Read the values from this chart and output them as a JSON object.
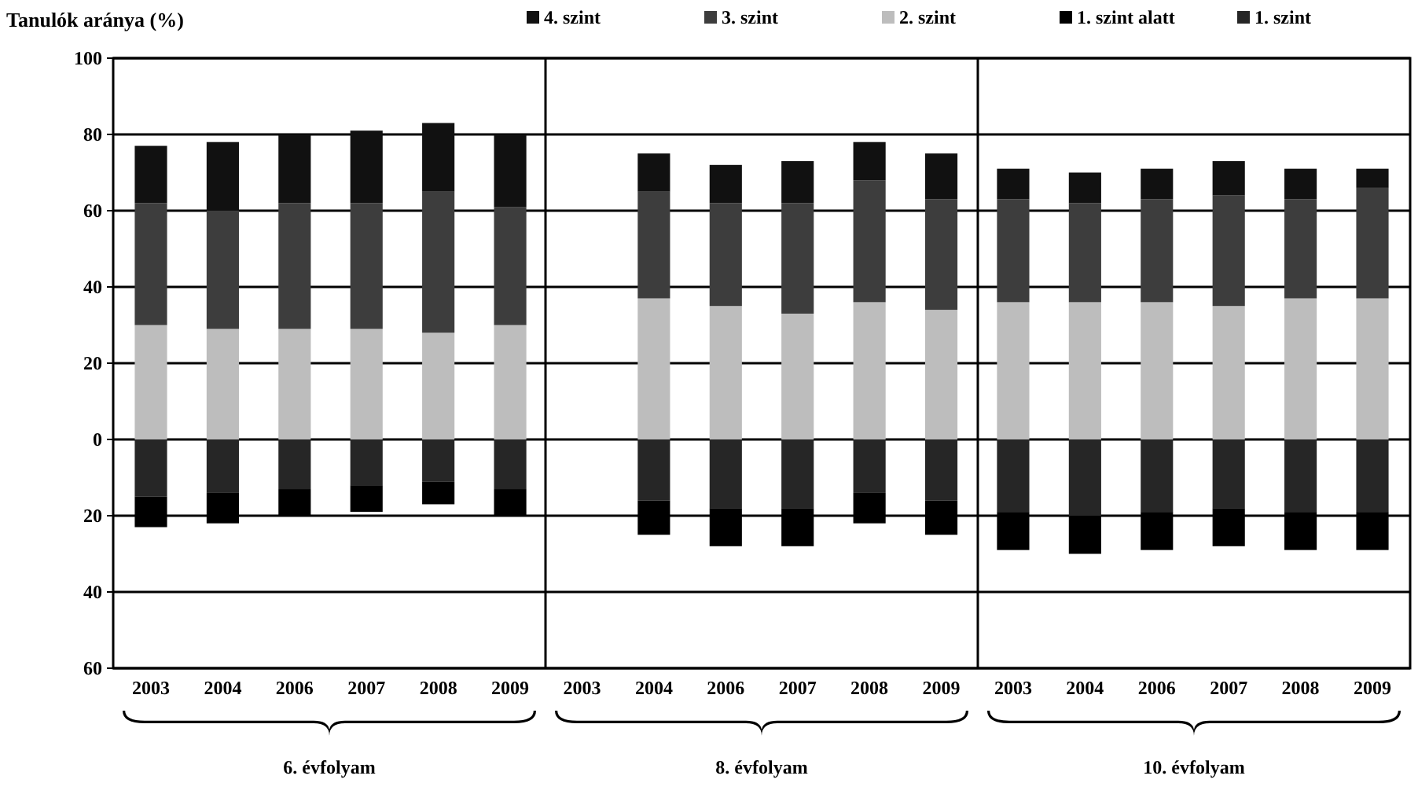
{
  "chart_data": {
    "type": "bar",
    "stacked": true,
    "ylabel": "Tanulók aránya (%)",
    "categories": [
      "2003",
      "2004",
      "2006",
      "2007",
      "2008",
      "2009",
      "2003",
      "2004",
      "2006",
      "2007",
      "2008",
      "2009",
      "2003",
      "2004",
      "2006",
      "2007",
      "2008",
      "2009"
    ],
    "series": [
      {
        "name": "1. szint",
        "color": "#262626",
        "values": [
          -15,
          -14,
          -13,
          -12,
          -11,
          -13,
          null,
          -16,
          -18,
          -18,
          -14,
          -16,
          -19,
          -20,
          -19,
          -18,
          -19,
          -19
        ]
      },
      {
        "name": "1. szint alatt",
        "color": "#000000",
        "values": [
          -8,
          -8,
          -7,
          -7,
          -6,
          -7,
          null,
          -9,
          -10,
          -10,
          -8,
          -9,
          -10,
          -10,
          -10,
          -10,
          -10,
          -10
        ]
      },
      {
        "name": "2. szint",
        "color": "#bdbdbd",
        "values": [
          30,
          29,
          29,
          29,
          28,
          30,
          null,
          37,
          35,
          33,
          36,
          34,
          36,
          36,
          36,
          35,
          37,
          37
        ]
      },
      {
        "name": "3. szint",
        "color": "#3d3d3d",
        "values": [
          32,
          31,
          33,
          33,
          37,
          31,
          null,
          28,
          27,
          29,
          32,
          29,
          27,
          26,
          27,
          29,
          26,
          29
        ]
      },
      {
        "name": "4. szint",
        "color": "#111111",
        "values": [
          15,
          18,
          18,
          19,
          18,
          19,
          null,
          10,
          10,
          11,
          10,
          12,
          8,
          8,
          8,
          9,
          8,
          5
        ]
      }
    ],
    "ylim": [
      -60,
      100
    ],
    "yticks": [
      {
        "value": -60,
        "label": "60"
      },
      {
        "value": -40,
        "label": "40"
      },
      {
        "value": -20,
        "label": "20"
      },
      0,
      20,
      40,
      60,
      80,
      100
    ],
    "grid": "y",
    "legend": "top",
    "annotations": [
      "6. évfolyam",
      "8. évfolyam",
      "10. évfolyam"
    ]
  }
}
